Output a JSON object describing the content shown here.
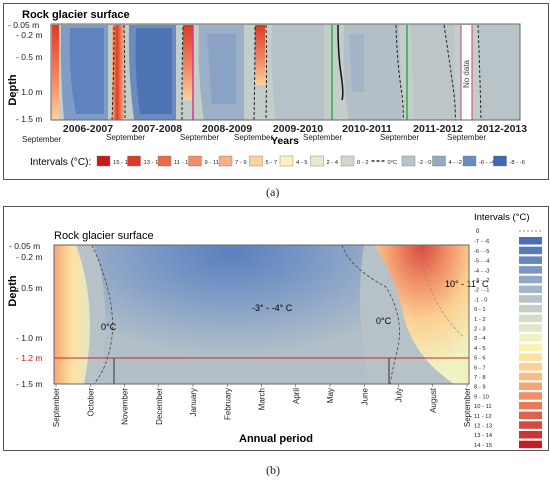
{
  "panel_a": {
    "label": "(a)",
    "title": "Rock glacier surface",
    "ylabel": "Depth",
    "xlabel": "Years",
    "ytick_labels": [
      "- 0.05 m",
      "- 0.2 m",
      "- 0.5 m",
      "- 1.0 m",
      "- 1.5 m"
    ],
    "month_label": "September",
    "no_data_label": "No data",
    "legend_title": "Intervals (°C):",
    "legend": [
      {
        "label": "15 - 17",
        "color": "#c8191c"
      },
      {
        "label": "13 - 15",
        "color": "#dd3b26"
      },
      {
        "label": "11 - 13",
        "color": "#ec6a48"
      },
      {
        "label": "9 - 11",
        "color": "#f38c67"
      },
      {
        "label": "7 - 9",
        "color": "#f7b085"
      },
      {
        "label": "5 - 7",
        "color": "#fad29c"
      },
      {
        "label": "4 - 5",
        "color": "#fdf0bd"
      },
      {
        "label": "2 - 4",
        "color": "#e3ebc8"
      },
      {
        "label": "0 - 2",
        "color": "#cfd8c8"
      },
      {
        "label": "0°C",
        "color": "#333333"
      },
      {
        "label": "-2 - 0",
        "color": "#b9c4c9"
      },
      {
        "label": "4 - -2",
        "color": "#95a9c4"
      },
      {
        "label": "-6 - -4",
        "color": "#6c8cc0"
      },
      {
        "label": "-8 - -6",
        "color": "#3f67b2"
      }
    ]
  },
  "panel_b": {
    "label": "(b)",
    "title": "Rock glacier surface",
    "ylabel": "Depth",
    "xlabel": "Annual period",
    "ytick_labels": [
      "- 0.05 m",
      "- 0.2 m",
      "- 0.5 m",
      "- 1.0 m",
      "- 1.2 m",
      "- 1.5 m"
    ],
    "months": [
      "September",
      "October",
      "November",
      "December",
      "January",
      "February",
      "March",
      "April",
      "May",
      "June",
      "July",
      "August",
      "September"
    ],
    "annotations": {
      "zero_left": "0°C",
      "center": "-3° - -4° C",
      "zero_right": "0°C",
      "warm": "10° - 11° C"
    },
    "legend_title": "Intervals (°C)",
    "legend_zero": "0",
    "legend": [
      {
        "label": "-7 - -6",
        "color": "#4a6fb5"
      },
      {
        "label": "-6 - -5",
        "color": "#577ab9"
      },
      {
        "label": "-5 - -4",
        "color": "#6486bd"
      },
      {
        "label": "-4 - -3",
        "color": "#7a97c3"
      },
      {
        "label": "-3 - -2",
        "color": "#90a8c8"
      },
      {
        "label": "-2 - -1",
        "color": "#a4b6c9"
      },
      {
        "label": "-1 - 0",
        "color": "#b6c2c8"
      },
      {
        "label": "0 - 1",
        "color": "#c4cfc6"
      },
      {
        "label": "1 - 2",
        "color": "#d3dcc6"
      },
      {
        "label": "2 - 3",
        "color": "#e2e8c6"
      },
      {
        "label": "3 - 4",
        "color": "#f1f2c2"
      },
      {
        "label": "4 - 5",
        "color": "#fbf1b4"
      },
      {
        "label": "5 - 6",
        "color": "#fde2a2"
      },
      {
        "label": "6 - 7",
        "color": "#fcd092"
      },
      {
        "label": "7 - 8",
        "color": "#f9bc84"
      },
      {
        "label": "8 - 9",
        "color": "#f6a676"
      },
      {
        "label": "9 - 10",
        "color": "#f08f67"
      },
      {
        "label": "10 - 11",
        "color": "#e87858"
      },
      {
        "label": "11 - 12",
        "color": "#e0614b"
      },
      {
        "label": "12 - 13",
        "color": "#d64a3e"
      },
      {
        "label": "13 - 14",
        "color": "#cc3434"
      },
      {
        "label": "14 - 15",
        "color": "#bf2027"
      }
    ]
  },
  "chart_data": [
    {
      "type": "heatmap",
      "title": "Rock glacier surface",
      "xlabel": "Years",
      "ylabel": "Depth",
      "categories": [
        "2006-2007",
        "2007-2008",
        "2008-2009",
        "2009-2010",
        "2010-2011",
        "2011-2012",
        "2012-2013"
      ],
      "depth_ticks": [
        "- 0.05 m",
        "- 0.2 m",
        "- 0.5 m",
        "- 1.0 m",
        "- 1.5 m"
      ],
      "ylim": [
        -0.05,
        -1.5
      ],
      "notes": [
        "No data"
      ],
      "legend_unit": "°C"
    },
    {
      "type": "heatmap",
      "title": "Rock glacier surface",
      "xlabel": "Annual period",
      "ylabel": "Depth",
      "categories": [
        "September",
        "October",
        "November",
        "December",
        "January",
        "February",
        "March",
        "April",
        "May",
        "June",
        "July",
        "August",
        "September"
      ],
      "depth_ticks": [
        "- 0.05 m",
        "- 0.2 m",
        "- 0.5 m",
        "- 1.0 m",
        "- 1.2 m",
        "- 1.5 m"
      ],
      "ylim": [
        -0.05,
        -1.5
      ],
      "annotations": [
        "0°C",
        "-3° - -4° C",
        "0°C",
        "10° - 11° C"
      ],
      "legend_unit": "°C"
    }
  ]
}
